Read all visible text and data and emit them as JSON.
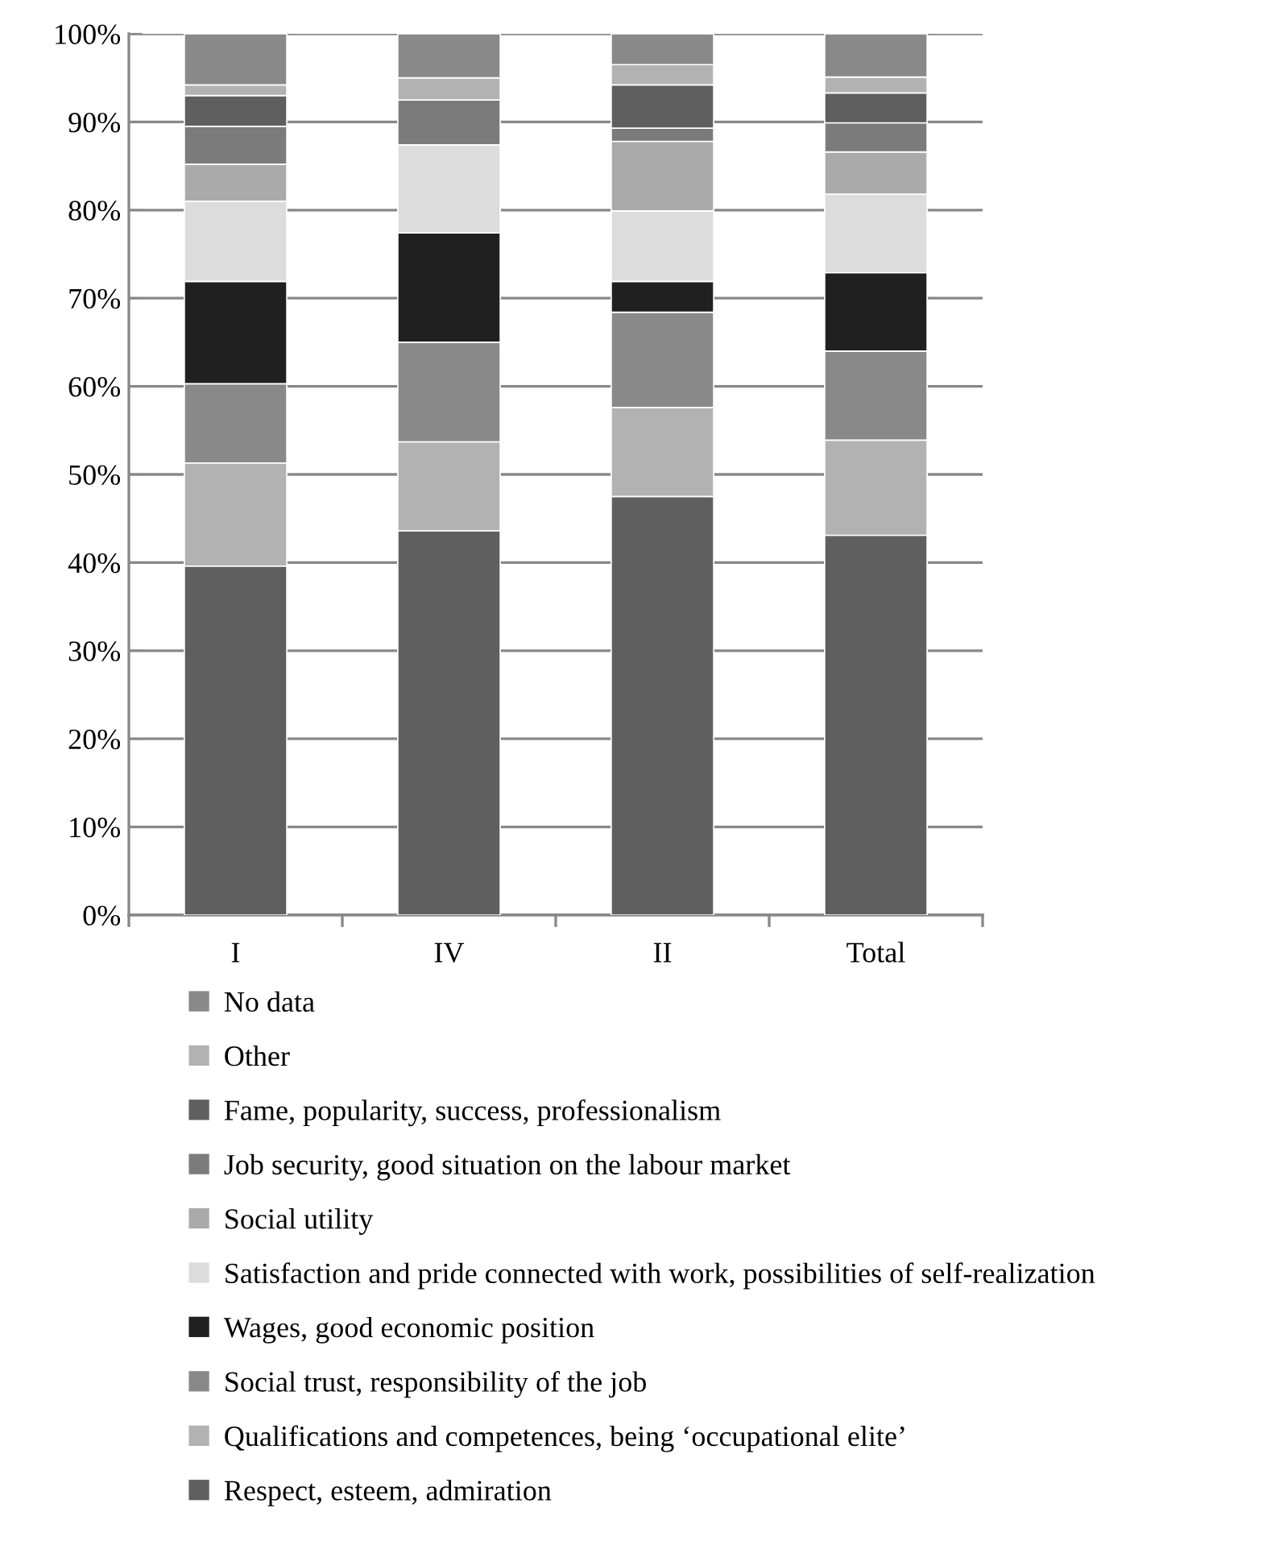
{
  "chart_data": {
    "type": "bar",
    "stacked": true,
    "categories": [
      "I",
      "IV",
      "II",
      "Total"
    ],
    "ylim": [
      0,
      100
    ],
    "yticks": [
      {
        "value": 0,
        "label": "0%"
      },
      {
        "value": 10,
        "label": "10%"
      },
      {
        "value": 20,
        "label": "20%"
      },
      {
        "value": 30,
        "label": "30%"
      },
      {
        "value": 40,
        "label": "40%"
      },
      {
        "value": 50,
        "label": "50%"
      },
      {
        "value": 60,
        "label": "60%"
      },
      {
        "value": 70,
        "label": "70%"
      },
      {
        "value": 80,
        "label": "80%"
      },
      {
        "value": 90,
        "label": "90%"
      },
      {
        "value": 100,
        "label": "100%"
      }
    ],
    "grid": "y",
    "legend": "bottom",
    "series": [
      {
        "name": "Respect, esteem, admiration",
        "color": "#5f5f5f",
        "values": [
          39.6,
          43.6,
          47.5,
          43.1
        ]
      },
      {
        "name": "Qualifications and competences, being ‘occupational elite’",
        "color": "#b2b2b2",
        "values": [
          11.7,
          10.1,
          10.1,
          10.8
        ]
      },
      {
        "name": "Social trust, responsibility of the job",
        "color": "#898989",
        "values": [
          9.0,
          11.3,
          10.8,
          10.1
        ]
      },
      {
        "name": "Wages, good economic position",
        "color": "#202020",
        "values": [
          11.6,
          12.4,
          3.5,
          8.9
        ]
      },
      {
        "name": "Satisfaction and pride connected with work, possibilities of self-realization",
        "color": "#dcdcdc",
        "values": [
          9.1,
          10.0,
          8.0,
          8.9
        ]
      },
      {
        "name": "Social utility",
        "color": "#a9aaa9",
        "values": [
          4.2,
          0,
          7.9,
          4.8
        ]
      },
      {
        "name": "Job security, good situation on the labour market",
        "color": "#7b7b7b",
        "values": [
          4.3,
          5.1,
          1.5,
          3.3
        ]
      },
      {
        "name": "Fame, popularity, success, professionalism",
        "color": "#5f5f5f",
        "values": [
          3.5,
          0,
          4.9,
          3.4
        ]
      },
      {
        "name": "Other",
        "color": "#b2b2b2",
        "values": [
          1.2,
          2.5,
          2.3,
          1.8
        ]
      },
      {
        "name": "No data",
        "color": "#898989",
        "values": [
          5.8,
          5.0,
          3.5,
          4.9
        ]
      }
    ]
  }
}
